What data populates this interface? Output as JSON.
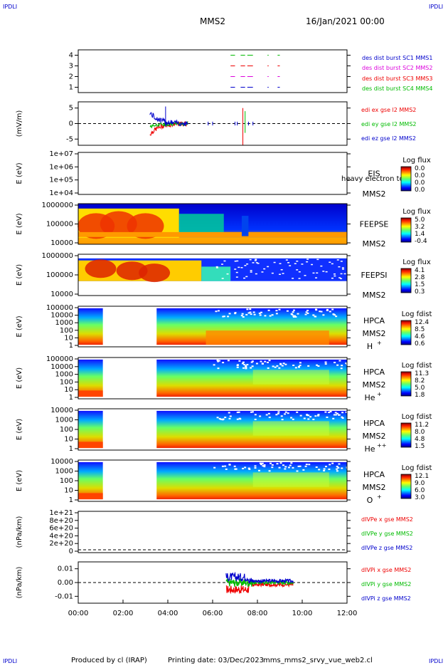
{
  "header": {
    "corner_tl": "IPDLI",
    "corner_tr": "IPDLI",
    "corner_bl": "IPDLI",
    "corner_br": "IPDLI",
    "title": "MMS2",
    "date": "16/Jan/2021 00:00"
  },
  "footer": {
    "produced": "Produced by cl (IRAP)",
    "printing": "Printing date: 03/Dec/2023",
    "file": "mms_mms2_srvy_vue_web2.cl"
  },
  "colors": {
    "blue": "#0000cc",
    "green": "#00bb00",
    "red": "#ee0000",
    "magenta": "#dd00dd"
  },
  "chart_data": [
    {
      "id": "burst",
      "type": "scatter",
      "ylim": [
        0.5,
        4.5
      ],
      "yticks": [
        "1",
        "2",
        "3",
        "4"
      ],
      "series": [
        {
          "name": "des dist burst SC1 MMS1",
          "color": "#0000cc",
          "y": 1
        },
        {
          "name": "des dist burst SC2 MMS2",
          "color": "#dd00dd",
          "y": 2
        },
        {
          "name": "des dist burst SC3 MMS3",
          "color": "#ee0000",
          "y": 3
        },
        {
          "name": "des dist burst SC4 MMS4",
          "color": "#00bb00",
          "y": 4
        }
      ],
      "intervals": [
        [
          6.8,
          7.0
        ],
        [
          7.25,
          7.45
        ],
        [
          7.55,
          7.8
        ],
        [
          8.45,
          8.5
        ],
        [
          8.9,
          9.0
        ]
      ]
    },
    {
      "id": "efield",
      "type": "line",
      "ylabel": "(mV/m)",
      "ylim": [
        -7,
        7
      ],
      "yticks": [
        "5",
        "0",
        "-5"
      ],
      "series": [
        {
          "name": "edi ex gse l2 MMS2",
          "color": "#ee0000"
        },
        {
          "name": "edi ey gse l2 MMS2",
          "color": "#00bb00"
        },
        {
          "name": "edi ez gse l2 MMS2",
          "color": "#0000cc"
        }
      ]
    },
    {
      "id": "eis",
      "type": "heatmap",
      "ylabel": "E (eV)",
      "yticks": [
        "1e+07",
        "1e+06",
        "1e+05",
        "1e+04"
      ],
      "labels": [
        "EIS",
        "MMS2"
      ],
      "overlay": "heavy electron to",
      "colorbar_title": "Log flux",
      "colorbar_ticks": [
        "0.0",
        "0.0",
        "0.0",
        "0.0"
      ]
    },
    {
      "id": "feepse",
      "type": "heatmap",
      "ylabel": "E (eV)",
      "yticks": [
        "1000000",
        "100000",
        "10000"
      ],
      "labels": [
        "FEEPSE",
        "MMS2"
      ],
      "colorbar_title": "Log flux",
      "colorbar_ticks": [
        "5.0",
        "3.2",
        "1.4",
        "-0.4"
      ]
    },
    {
      "id": "feepsi",
      "type": "heatmap",
      "ylabel": "E (eV)",
      "yticks": [
        "1000000",
        "100000",
        "10000"
      ],
      "labels": [
        "FEEPSI",
        "MMS2"
      ],
      "colorbar_title": "Log flux",
      "colorbar_ticks": [
        "4.1",
        "2.8",
        "1.5",
        "0.3"
      ]
    },
    {
      "id": "hpca_h",
      "type": "heatmap",
      "ylabel": "E (eV)",
      "yticks": [
        "100000",
        "10000",
        "1000",
        "100",
        "10",
        "1"
      ],
      "labels": [
        "HPCA",
        "MMS2",
        "H"
      ],
      "ion_sup": "+",
      "colorbar_title": "Log fdist",
      "colorbar_ticks": [
        "12.4",
        "8.5",
        "4.6",
        "0.6"
      ]
    },
    {
      "id": "hpca_he",
      "type": "heatmap",
      "ylabel": "E (eV)",
      "yticks": [
        "100000",
        "10000",
        "1000",
        "100",
        "10",
        "1"
      ],
      "labels": [
        "HPCA",
        "MMS2",
        "He"
      ],
      "ion_sup": "+",
      "colorbar_title": "Log fdist",
      "colorbar_ticks": [
        "11.3",
        "8.2",
        "5.0",
        "1.8"
      ]
    },
    {
      "id": "hpca_hepp",
      "type": "heatmap",
      "ylabel": "E (eV)",
      "yticks": [
        "10000",
        "1000",
        "100",
        "10",
        "1"
      ],
      "labels": [
        "HPCA",
        "MMS2",
        "He"
      ],
      "ion_sup": "++",
      "colorbar_title": "Log fdist",
      "colorbar_ticks": [
        "11.2",
        "8.0",
        "4.8",
        "1.5"
      ]
    },
    {
      "id": "hpca_o",
      "type": "heatmap",
      "ylabel": "E (eV)",
      "yticks": [
        "10000",
        "1000",
        "100",
        "10",
        "1"
      ],
      "labels": [
        "HPCA",
        "MMS2",
        "O"
      ],
      "ion_sup": "+",
      "colorbar_title": "Log fdist",
      "colorbar_ticks": [
        "12.1",
        "9.0",
        "6.0",
        "3.0"
      ]
    },
    {
      "id": "divpe",
      "type": "line",
      "ylabel": "(nPa/km)",
      "yticks": [
        "1e+21",
        "8e+20",
        "6e+20",
        "4e+20",
        "2e+20",
        "0"
      ],
      "series": [
        {
          "name": "dIVPe x gse MMS2",
          "color": "#ee0000"
        },
        {
          "name": "dIVPe y gse MMS2",
          "color": "#00bb00"
        },
        {
          "name": "dIVPe z gse MMS2",
          "color": "#0000cc"
        }
      ]
    },
    {
      "id": "divpi",
      "type": "line",
      "ylabel": "(nPa/km)",
      "ylim": [
        -0.015,
        0.015
      ],
      "yticks": [
        "0.01",
        "0.00",
        "-0.01"
      ],
      "series": [
        {
          "name": "dIVPi x gse MMS2",
          "color": "#ee0000"
        },
        {
          "name": "dIVPi y gse MMS2",
          "color": "#00bb00"
        },
        {
          "name": "dIVPi z gse MMS2",
          "color": "#0000cc"
        }
      ]
    }
  ],
  "xaxis": {
    "range": [
      0,
      12
    ],
    "ticks": [
      "00:00",
      "02:00",
      "04:00",
      "06:00",
      "08:00",
      "10:00",
      "12:00"
    ]
  }
}
